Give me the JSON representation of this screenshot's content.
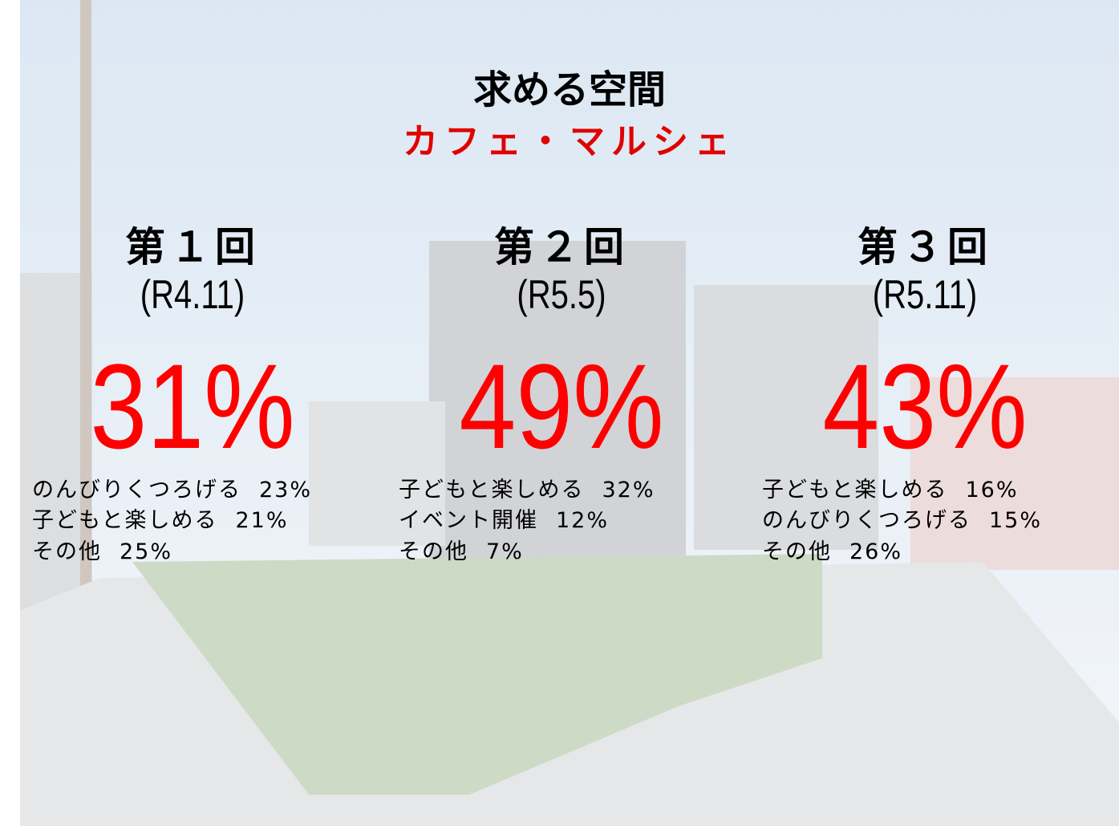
{
  "header": {
    "title": "求める空間",
    "subtitle": "カフェ・マルシェ"
  },
  "rounds": [
    {
      "label": "第１回",
      "period": "(R4.11)",
      "percent": "31%",
      "items": [
        {
          "label": "のんびりくつろげる",
          "value": "23%"
        },
        {
          "label": "子どもと楽しめる",
          "value": "21%"
        },
        {
          "label": "その他",
          "value": "25%"
        }
      ]
    },
    {
      "label": "第２回",
      "period": "(R5.5)",
      "percent": "49%",
      "items": [
        {
          "label": "子どもと楽しめる",
          "value": "32%"
        },
        {
          "label": "イベント開催",
          "value": "12%"
        },
        {
          "label": "その他",
          "value": "7%"
        }
      ]
    },
    {
      "label": "第３回",
      "period": "(R5.11)",
      "percent": "43%",
      "items": [
        {
          "label": "子どもと楽しめる",
          "value": "16%"
        },
        {
          "label": "のんびりくつろげる",
          "value": "15%"
        },
        {
          "label": "その他",
          "value": "26%"
        }
      ]
    }
  ]
}
